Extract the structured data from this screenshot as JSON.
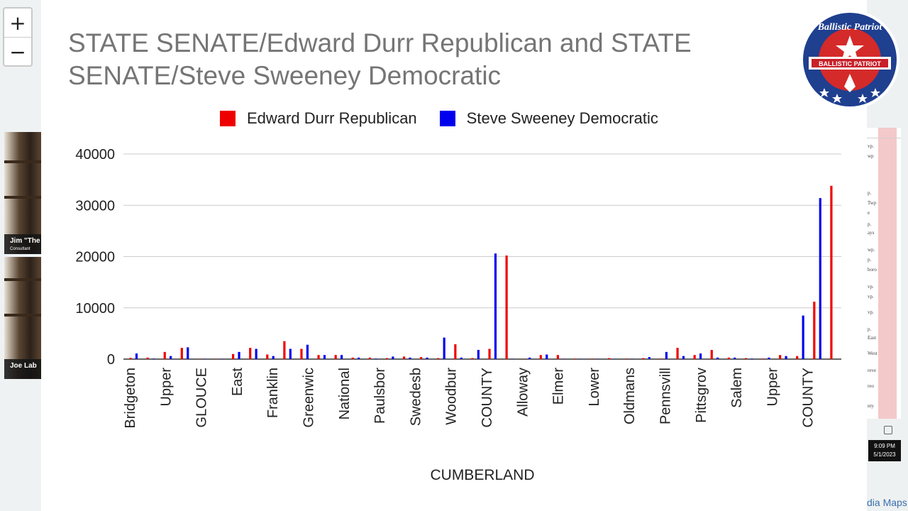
{
  "map": {
    "zoom_in": "+",
    "zoom_out": "−"
  },
  "participants": [
    {
      "name": "Jim \"The",
      "role": "Consultant"
    },
    {
      "name": "Joe Lab",
      "role": ""
    }
  ],
  "sheet_cells": [
    "vp.",
    "wp",
    "p.",
    "Twp",
    "e",
    "p.",
    "ays",
    "wp.",
    "p.",
    "boro",
    "vp.",
    "vp.",
    "vp.",
    "p.",
    "East",
    "West",
    "reve",
    "reo",
    "nty"
  ],
  "clock": {
    "time": "9:09 PM",
    "date": "5/1/2023"
  },
  "media_text": "dia Maps",
  "logo": {
    "top_text": "Ballistic Patriot",
    "banner_text": "BALLISTIC PATRIOT"
  },
  "colors": {
    "republican": "#ee0000",
    "democratic": "#0000ee",
    "title": "#757575"
  },
  "chart_data": {
    "type": "bar",
    "title": "STATE SENATE/Edward Durr Republican and STATE SENATE/Steve Sweeney Democratic",
    "xlabel": "CUMBERLAND",
    "ylabel": "",
    "ylim": [
      0,
      40000
    ],
    "yticks": [
      0,
      10000,
      20000,
      30000,
      40000
    ],
    "grid": true,
    "legend_position": "top",
    "tick_labels": [
      "Bridgeton",
      "Upper",
      "GLOUCE",
      "East",
      "Franklin",
      "Greenwic",
      "National",
      "Paulsbor",
      "Swedesb",
      "Woodbur",
      "COUNTY",
      "Alloway",
      "Elmer",
      "Lower",
      "Oldmans",
      "Pennsvill",
      "Pittsgrov",
      "Salem",
      "Upper",
      "COUNTY"
    ],
    "series": [
      {
        "name": "Edward Durr Republican",
        "values": [
          250,
          300,
          1400,
          2200,
          50,
          50,
          1000,
          2200,
          900,
          3500,
          2000,
          800,
          800,
          300,
          300,
          200,
          500,
          400,
          200,
          2900,
          200,
          2000,
          20200,
          50,
          800,
          800,
          100,
          100,
          200,
          100,
          200,
          100,
          2200,
          800,
          1800,
          300,
          200,
          100,
          800,
          600,
          11200,
          33800
        ]
      },
      {
        "name": "Steve Sweeney Democratic",
        "values": [
          1100,
          100,
          600,
          2300,
          50,
          50,
          1400,
          2000,
          600,
          2000,
          2800,
          800,
          800,
          300,
          100,
          500,
          300,
          300,
          4200,
          300,
          1800,
          20600,
          50,
          300,
          900,
          50,
          50,
          50,
          50,
          50,
          400,
          1400,
          600,
          1100,
          300,
          300,
          100,
          300,
          600,
          8500,
          31400,
          0
        ]
      }
    ]
  }
}
